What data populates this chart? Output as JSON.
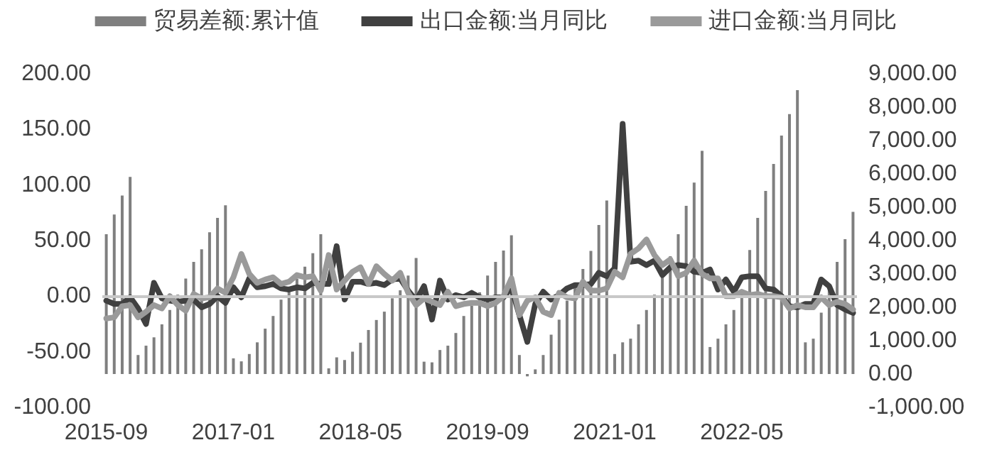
{
  "chart_data": {
    "type": "bar",
    "legend": "top",
    "grid": false,
    "ref_lines": [
      {
        "axis": "y",
        "value": 0,
        "color": "#c8c8c8"
      }
    ],
    "categories": [
      "2015-09",
      null,
      null,
      null,
      null,
      null,
      null,
      null,
      null,
      null,
      null,
      null,
      null,
      null,
      null,
      null,
      "2017-01",
      null,
      null,
      null,
      null,
      null,
      null,
      null,
      null,
      null,
      null,
      null,
      null,
      null,
      null,
      null,
      "2018-05",
      null,
      null,
      null,
      null,
      null,
      null,
      null,
      null,
      null,
      null,
      null,
      null,
      null,
      null,
      null,
      "2019-09",
      null,
      null,
      null,
      null,
      null,
      null,
      null,
      null,
      null,
      null,
      null,
      null,
      null,
      null,
      null,
      "2021-01",
      null,
      null,
      null,
      null,
      null,
      null,
      null,
      null,
      null,
      null,
      null,
      null,
      null,
      null,
      null,
      "2022-05",
      null,
      null,
      null,
      null,
      null,
      null,
      null,
      null,
      null,
      null,
      null,
      null,
      null,
      null
    ],
    "ylim": [
      -100,
      200
    ],
    "yticks": [
      {
        "value": -100,
        "label": "-100.00"
      },
      {
        "value": -50,
        "label": "-50.00"
      },
      {
        "value": 0,
        "label": "0.00"
      },
      {
        "value": 50,
        "label": "50.00"
      },
      {
        "value": 100,
        "label": "100.00"
      },
      {
        "value": 150,
        "label": "150.00"
      },
      {
        "value": 200,
        "label": "200.00"
      }
    ],
    "y2lim": [
      -1000,
      9000
    ],
    "y2ticks": [
      {
        "value": -1000,
        "label": "-1,000.00"
      },
      {
        "value": 0,
        "label": "0.00"
      },
      {
        "value": 1000,
        "label": "1,000.00"
      },
      {
        "value": 2000,
        "label": "2,000.00"
      },
      {
        "value": 3000,
        "label": "3,000.00"
      },
      {
        "value": 4000,
        "label": "4,000.00"
      },
      {
        "value": 5000,
        "label": "5,000.00"
      },
      {
        "value": 6000,
        "label": "6,000.00"
      },
      {
        "value": 7000,
        "label": "7,000.00"
      },
      {
        "value": 8000,
        "label": "8,000.00"
      },
      {
        "value": 9000,
        "label": "9,000.00"
      }
    ],
    "series": [
      {
        "name": "贸易差额:累计值",
        "axis": "y2",
        "color": "#7f7f7f",
        "values": [
          4190,
          4780,
          5350,
          5910,
          570,
          850,
          1100,
          1490,
          1920,
          2380,
          2860,
          3360,
          3740,
          4250,
          4680,
          5060,
          470,
          380,
          600,
          950,
          1360,
          1740,
          2230,
          2540,
          2860,
          3220,
          3620,
          4190,
          170,
          500,
          420,
          670,
          940,
          1320,
          1620,
          1870,
          2270,
          2510,
          2950,
          3480,
          370,
          350,
          720,
          850,
          1230,
          1740,
          2050,
          2450,
          2950,
          3360,
          3700,
          4160,
          570,
          -70,
          140,
          570,
          1180,
          1630,
          2200,
          2620,
          3150,
          3690,
          4470,
          5200,
          600,
          950,
          1060,
          1490,
          1920,
          2380,
          3050,
          3530,
          4190,
          5040,
          5740,
          6690,
          810,
          1060,
          1490,
          1920,
          2480,
          3720,
          4680,
          5490,
          6300,
          7150,
          7790,
          8510,
          950,
          1060,
          1840,
          2600,
          3360,
          4040,
          4860
        ]
      },
      {
        "name": "出口金额:当月同比",
        "type": "line",
        "color": "#404040",
        "values": [
          -4,
          -7,
          -7,
          -1,
          -11,
          -25,
          12,
          -2,
          -4,
          -5,
          -4,
          -3,
          -10,
          -7,
          0,
          -6,
          8,
          -1,
          16,
          8,
          9,
          11,
          7,
          6,
          8,
          7,
          12,
          11,
          11,
          45,
          -3,
          13,
          13,
          11,
          12,
          10,
          15,
          16,
          5,
          -4,
          9,
          -21,
          14,
          -3,
          1,
          -1,
          3,
          -1,
          -3,
          -1,
          -1,
          8,
          -17,
          -41,
          -7,
          4,
          -3,
          1,
          7,
          10,
          10,
          11,
          21,
          18,
          25,
          155,
          31,
          32,
          28,
          32,
          19,
          26,
          28,
          27,
          22,
          21,
          24,
          6,
          15,
          4,
          17,
          18,
          18,
          7,
          6,
          0,
          -9,
          -10,
          -7,
          -7,
          15,
          9,
          -8,
          -12,
          -15
        ]
      },
      {
        "name": "进口金额:当月同比",
        "type": "line",
        "color": "#9a9a9a",
        "values": [
          -20,
          -19,
          -9,
          -8,
          -19,
          -14,
          -8,
          -11,
          0,
          -8,
          -13,
          2,
          -2,
          -1,
          7,
          3,
          17,
          38,
          20,
          12,
          15,
          17,
          11,
          13,
          19,
          17,
          18,
          5,
          37,
          6,
          14,
          22,
          26,
          11,
          27,
          20,
          14,
          21,
          3,
          -8,
          -2,
          -5,
          -8,
          4,
          -9,
          -7,
          -6,
          -6,
          -9,
          -6,
          0,
          16,
          -17,
          -4,
          -1,
          -14,
          -17,
          3,
          -1,
          -2,
          13,
          5,
          5,
          7,
          22,
          17,
          38,
          43,
          51,
          37,
          28,
          33,
          18,
          21,
          32,
          20,
          16,
          16,
          0,
          0,
          4,
          1,
          2,
          0,
          0,
          -1,
          -11,
          -8,
          -10,
          -10,
          -1,
          -8,
          -5,
          -7,
          -12
        ]
      }
    ]
  }
}
